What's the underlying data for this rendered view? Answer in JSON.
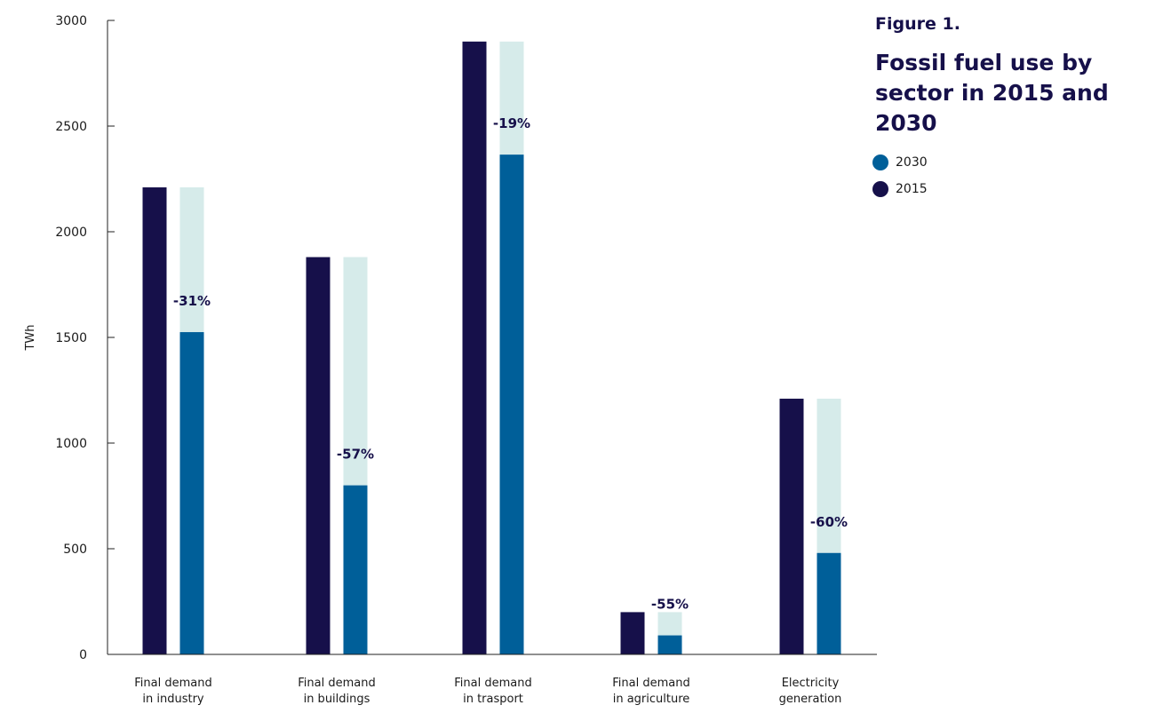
{
  "figure": {
    "number": "Figure 1.",
    "title": "Fossil fuel use by sector in 2015 and 2030"
  },
  "colors": {
    "y2015": "#16104a",
    "y2030": "#005f99",
    "reduction": "#d6ebea"
  },
  "chart_data": {
    "type": "bar",
    "categories": [
      [
        "Final demand",
        "in industry"
      ],
      [
        "Final demand",
        "in buildings"
      ],
      [
        "Final demand",
        "in trasport"
      ],
      [
        "Final demand",
        "in agriculture"
      ],
      [
        "Electricity",
        "generation"
      ]
    ],
    "series": [
      {
        "name": "2015",
        "values": [
          2210,
          1880,
          2900,
          200,
          1210
        ]
      },
      {
        "name": "2030",
        "values": [
          1525,
          800,
          2365,
          90,
          480
        ]
      }
    ],
    "change_labels": [
      "-31%",
      "-57%",
      "-19%",
      "-55%",
      "-60%"
    ],
    "ylabel": "TWh",
    "ylim": [
      0,
      3000
    ],
    "yticks": [
      0,
      500,
      1000,
      1500,
      2000,
      2500,
      3000
    ],
    "legend": [
      {
        "label": "2030",
        "series": "2030"
      },
      {
        "label": "2015",
        "series": "2015"
      }
    ],
    "legend_position": "top-right",
    "grid": false
  }
}
